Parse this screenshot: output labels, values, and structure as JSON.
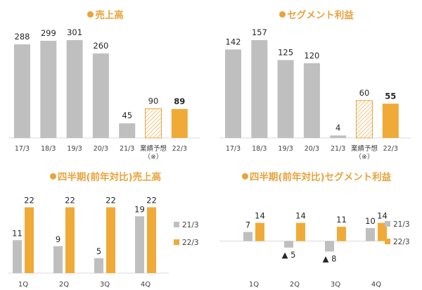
{
  "colors": {
    "past": "#BFBFBF",
    "current": "#F0AA38",
    "title": "#E8A33C",
    "text": "#404040",
    "hatch": "#E9A53E"
  },
  "panels": [
    {
      "title": "売上高"
    },
    {
      "title": "セグメント利益"
    },
    {
      "title": "四半期(前年対比)売上高"
    },
    {
      "title": "四半期(前年対比)セグメント利益"
    }
  ],
  "chart_data": [
    {
      "type": "bar",
      "title": "売上高",
      "categories": [
        "17/3",
        "18/3",
        "19/3",
        "20/3",
        "21/3",
        "業績予想（※）",
        "22/3"
      ],
      "values": [
        288,
        299,
        301,
        260,
        45,
        90,
        89
      ],
      "value_labels": [
        "288",
        "299",
        "301",
        "260",
        "45",
        "90",
        "89"
      ],
      "bar_styles": [
        "actual",
        "actual",
        "actual",
        "actual",
        "actual",
        "forecast",
        "current"
      ],
      "ylim": [
        0,
        301
      ]
    },
    {
      "type": "bar",
      "title": "セグメント利益",
      "categories": [
        "17/3",
        "18/3",
        "19/3",
        "20/3",
        "21/3",
        "業績予想（※）",
        "22/3"
      ],
      "values": [
        142,
        157,
        125,
        120,
        4,
        60,
        55
      ],
      "value_labels": [
        "142",
        "157",
        "125",
        "120",
        "4",
        "60",
        "55"
      ],
      "bar_styles": [
        "actual",
        "actual",
        "actual",
        "actual",
        "actual",
        "forecast",
        "current"
      ],
      "ylim": [
        0,
        157
      ]
    },
    {
      "type": "bar",
      "title": "四半期(前年対比)売上高",
      "categories": [
        "1Q",
        "2Q",
        "3Q",
        "4Q"
      ],
      "series": [
        {
          "name": "21/3",
          "values": [
            11,
            9,
            5,
            19
          ],
          "labels": [
            "11",
            "9",
            "5",
            "19"
          ]
        },
        {
          "name": "22/3",
          "values": [
            22,
            22,
            22,
            22
          ],
          "labels": [
            "22",
            "22",
            "22",
            "22"
          ]
        }
      ],
      "ylim": [
        0,
        22
      ],
      "legend": "right"
    },
    {
      "type": "bar",
      "title": "四半期(前年対比)セグメント利益",
      "categories": [
        "1Q",
        "2Q",
        "3Q",
        "4Q"
      ],
      "series": [
        {
          "name": "21/3",
          "values": [
            7,
            -5,
            -8,
            10
          ],
          "labels": [
            "7",
            "▲ 5",
            "▲ 8",
            "10"
          ]
        },
        {
          "name": "22/3",
          "values": [
            14,
            14,
            11,
            14
          ],
          "labels": [
            "14",
            "14",
            "11",
            "14"
          ]
        }
      ],
      "ylim": [
        -8,
        14
      ],
      "legend": "right"
    }
  ]
}
